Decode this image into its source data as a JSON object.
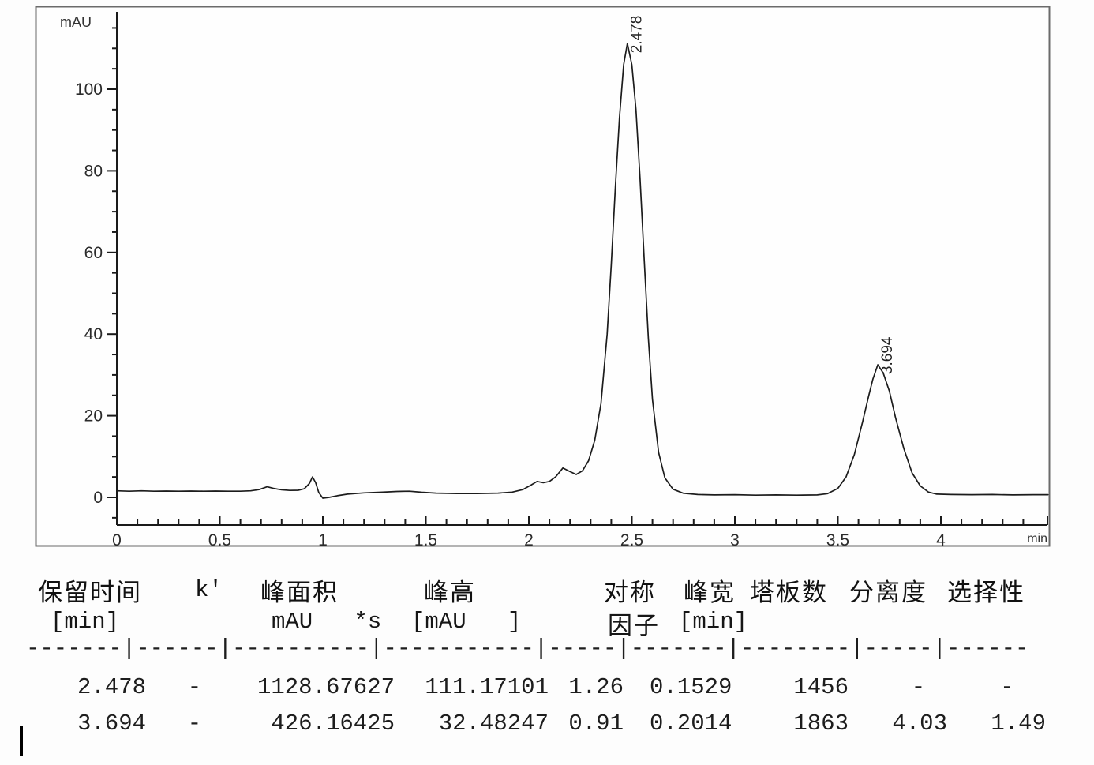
{
  "chart_data": {
    "type": "line",
    "title": "",
    "xlabel": "min",
    "ylabel": "mAU",
    "xlim": [
      0,
      4.53
    ],
    "ylim": [
      -7,
      120
    ],
    "grid": false,
    "line_color": "#1c1c1c",
    "x_major_ticks": [
      0,
      0.5,
      1,
      1.5,
      2,
      2.5,
      3,
      3.5,
      4
    ],
    "x_minor_step": 0.1,
    "y_major_ticks": [
      0,
      20,
      40,
      60,
      80,
      100
    ],
    "y_minor_step": 5,
    "peaks": [
      {
        "retention_time": 2.478,
        "height": 111.17101,
        "label": "2.478"
      },
      {
        "retention_time": 3.694,
        "height": 32.48247,
        "label": "3.694"
      }
    ],
    "trace": [
      [
        0.0,
        1.6
      ],
      [
        0.06,
        1.5
      ],
      [
        0.12,
        1.6
      ],
      [
        0.18,
        1.5
      ],
      [
        0.24,
        1.55
      ],
      [
        0.3,
        1.5
      ],
      [
        0.36,
        1.55
      ],
      [
        0.42,
        1.5
      ],
      [
        0.48,
        1.55
      ],
      [
        0.54,
        1.5
      ],
      [
        0.6,
        1.5
      ],
      [
        0.65,
        1.6
      ],
      [
        0.69,
        1.9
      ],
      [
        0.73,
        2.6
      ],
      [
        0.76,
        2.2
      ],
      [
        0.8,
        1.85
      ],
      [
        0.84,
        1.7
      ],
      [
        0.88,
        1.75
      ],
      [
        0.91,
        2.1
      ],
      [
        0.935,
        3.4
      ],
      [
        0.95,
        5.0
      ],
      [
        0.965,
        3.6
      ],
      [
        0.98,
        1.2
      ],
      [
        1.0,
        -0.2
      ],
      [
        1.03,
        0.0
      ],
      [
        1.07,
        0.4
      ],
      [
        1.12,
        0.8
      ],
      [
        1.2,
        1.1
      ],
      [
        1.28,
        1.25
      ],
      [
        1.36,
        1.45
      ],
      [
        1.42,
        1.5
      ],
      [
        1.48,
        1.25
      ],
      [
        1.55,
        1.05
      ],
      [
        1.65,
        0.95
      ],
      [
        1.75,
        0.95
      ],
      [
        1.85,
        1.05
      ],
      [
        1.92,
        1.3
      ],
      [
        1.97,
        1.9
      ],
      [
        2.01,
        3.0
      ],
      [
        2.04,
        3.9
      ],
      [
        2.07,
        3.6
      ],
      [
        2.1,
        3.9
      ],
      [
        2.13,
        5.0
      ],
      [
        2.165,
        7.2
      ],
      [
        2.2,
        6.3
      ],
      [
        2.23,
        5.6
      ],
      [
        2.26,
        6.5
      ],
      [
        2.29,
        9
      ],
      [
        2.32,
        14
      ],
      [
        2.35,
        23
      ],
      [
        2.38,
        40
      ],
      [
        2.4,
        57
      ],
      [
        2.42,
        76
      ],
      [
        2.44,
        93
      ],
      [
        2.46,
        106
      ],
      [
        2.478,
        111.2
      ],
      [
        2.5,
        106
      ],
      [
        2.52,
        95
      ],
      [
        2.54,
        78
      ],
      [
        2.56,
        58
      ],
      [
        2.58,
        39
      ],
      [
        2.6,
        24
      ],
      [
        2.63,
        11
      ],
      [
        2.66,
        4.8
      ],
      [
        2.7,
        2.0
      ],
      [
        2.75,
        1.0
      ],
      [
        2.82,
        0.7
      ],
      [
        2.9,
        0.6
      ],
      [
        3.0,
        0.65
      ],
      [
        3.1,
        0.55
      ],
      [
        3.2,
        0.6
      ],
      [
        3.3,
        0.55
      ],
      [
        3.4,
        0.6
      ],
      [
        3.45,
        0.9
      ],
      [
        3.5,
        2.2
      ],
      [
        3.54,
        5.0
      ],
      [
        3.58,
        10.5
      ],
      [
        3.62,
        18.5
      ],
      [
        3.65,
        25
      ],
      [
        3.67,
        29
      ],
      [
        3.694,
        32.5
      ],
      [
        3.72,
        30.5
      ],
      [
        3.75,
        26
      ],
      [
        3.78,
        19.5
      ],
      [
        3.82,
        12
      ],
      [
        3.86,
        6
      ],
      [
        3.9,
        2.8
      ],
      [
        3.94,
        1.3
      ],
      [
        3.98,
        0.8
      ],
      [
        4.05,
        0.7
      ],
      [
        4.15,
        0.65
      ],
      [
        4.25,
        0.7
      ],
      [
        4.35,
        0.6
      ],
      [
        4.45,
        0.65
      ],
      [
        4.52,
        0.65
      ]
    ]
  },
  "table": {
    "headers": {
      "col1": "保留时间",
      "col2": "k'",
      "col3": "峰面积",
      "col4": "峰高",
      "col5": "对称",
      "col6": "峰宽",
      "col7": "塔板数",
      "col8": "分离度",
      "col9": "选择性"
    },
    "units": {
      "col1": "[min]",
      "col3": "mAU   *s",
      "col4": "[mAU   ]",
      "col5": "因子",
      "col6": "[min]"
    },
    "separator": "-------|------|----------|-----------|-----|-------|--------|-----|------",
    "rows": [
      [
        "2.478",
        "-",
        "1128.67627",
        "111.17101",
        "1.26",
        "0.1529",
        "1456",
        "-",
        "-"
      ],
      [
        "3.694",
        "-",
        "426.16425",
        "32.48247",
        "0.91",
        "0.2014",
        "1863",
        "4.03",
        "1.49"
      ]
    ]
  }
}
